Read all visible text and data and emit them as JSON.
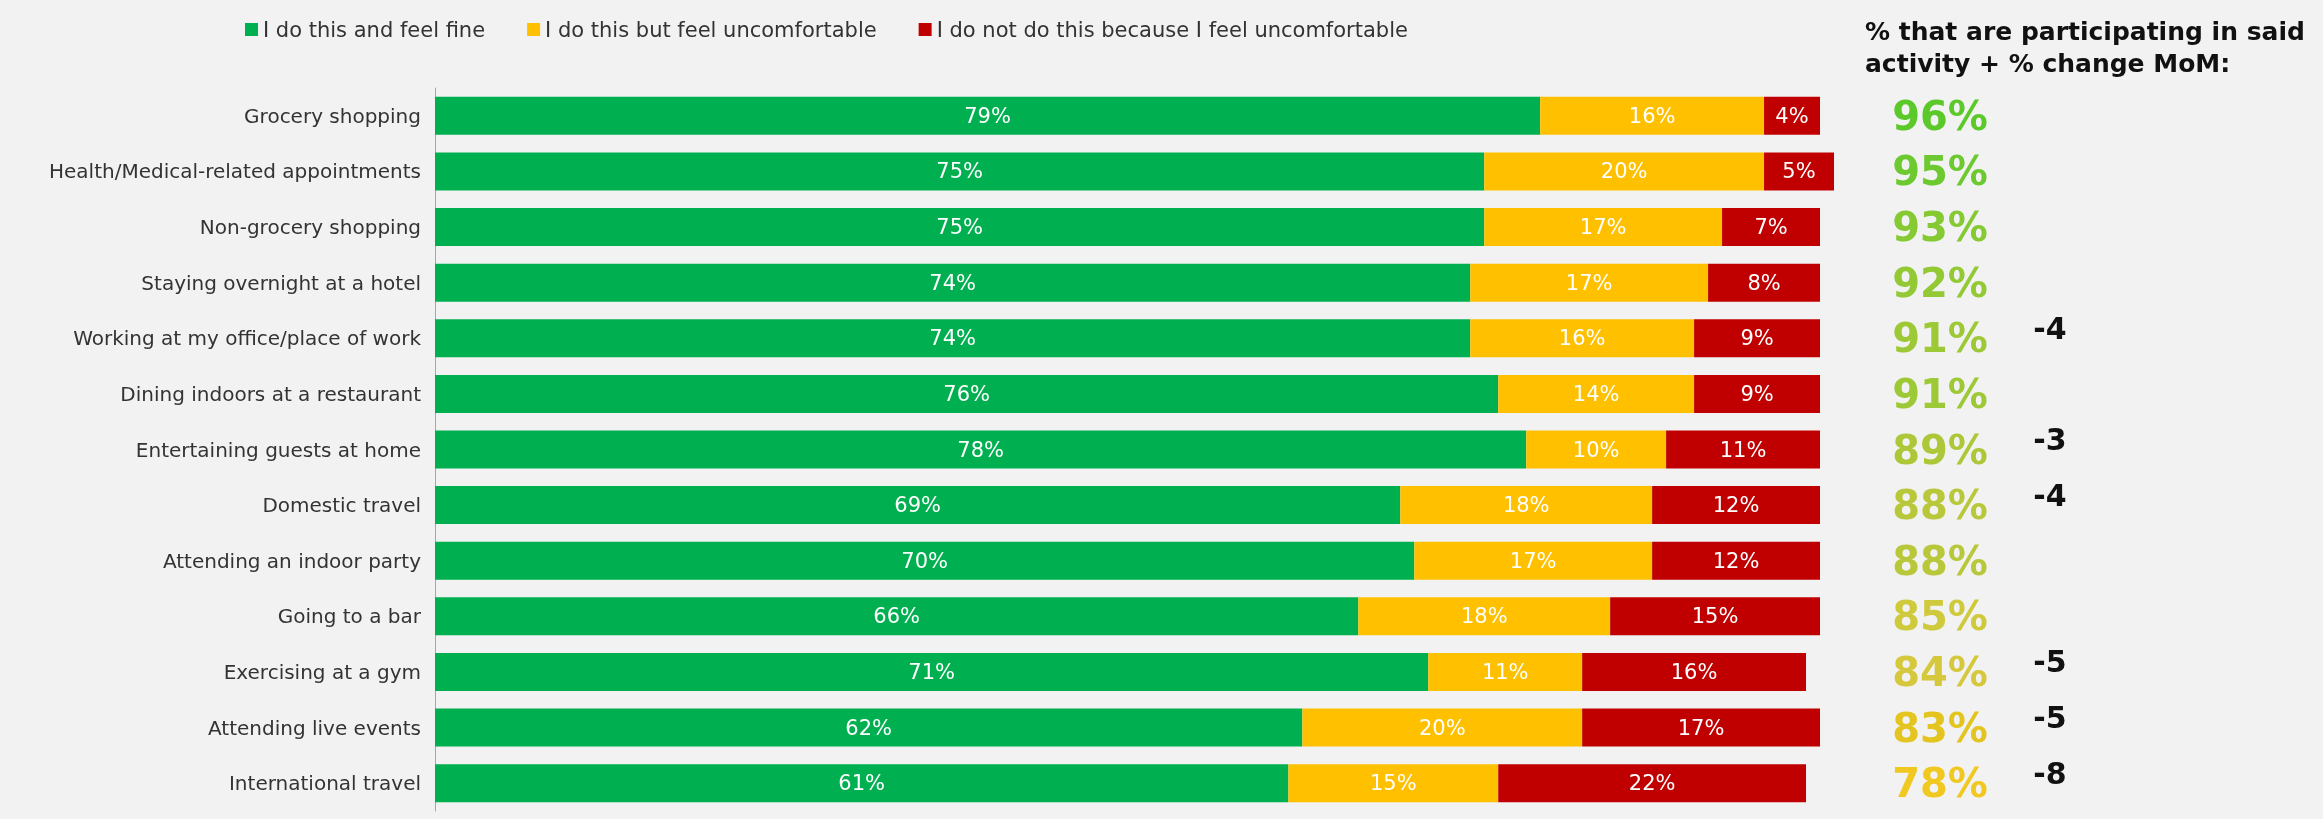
{
  "chart_data": [
    {
      "type": "bar",
      "orientation": "horizontal",
      "stacked": true,
      "legend": "top",
      "grid": false,
      "tick_labels": "y",
      "categories": [
        "Grocery shopping",
        "Health/Medical-related appointments",
        "Non-grocery shopping",
        "Staying overnight at a hotel",
        "Working at my office/place of work",
        "Dining indoors at a restaurant",
        "Entertaining guests at home",
        "Domestic travel",
        "Attending an indoor party",
        "Going to a bar",
        "Exercising at a gym",
        "Attending live events",
        "International travel"
      ],
      "series": [
        {
          "name": "I do this and feel fine",
          "color": "#00b050",
          "values": [
            79,
            75,
            75,
            74,
            74,
            76,
            78,
            69,
            70,
            66,
            71,
            62,
            61
          ],
          "value_labels": [
            "79%",
            "75%",
            "75%",
            "74%",
            "74%",
            "76%",
            "78%",
            "69%",
            "70%",
            "66%",
            "71%",
            "62%",
            "61%"
          ]
        },
        {
          "name": "I do this but feel uncomfortable",
          "color": "#ffc000",
          "values": [
            16,
            20,
            17,
            17,
            16,
            14,
            10,
            18,
            17,
            18,
            11,
            20,
            15
          ],
          "value_labels": [
            "16%",
            "20%",
            "17%",
            "17%",
            "16%",
            "14%",
            "10%",
            "18%",
            "17%",
            "18%",
            "11%",
            "20%",
            "15%"
          ]
        },
        {
          "name": "I do not do this because I feel uncomfortable",
          "color": "#c00000",
          "values": [
            4,
            5,
            7,
            8,
            9,
            9,
            11,
            12,
            12,
            15,
            16,
            17,
            22
          ],
          "value_labels": [
            "4%",
            "5%",
            "7%",
            "8%",
            "9%",
            "9%",
            "11%",
            "12%",
            "12%",
            "15%",
            "16%",
            "17%",
            "22%"
          ]
        }
      ]
    },
    {
      "type": "other",
      "title": "% that are participating in said activity + % change MoM:",
      "annotations": [
        "96%",
        "95%",
        "93%",
        "92%",
        "91%",
        "-4",
        "91%",
        "89%",
        "-3",
        "88%",
        "-4",
        "88%",
        "85%",
        "84%",
        "-5",
        "83%",
        "-5",
        "78%",
        "-8"
      ]
    }
  ]
}
